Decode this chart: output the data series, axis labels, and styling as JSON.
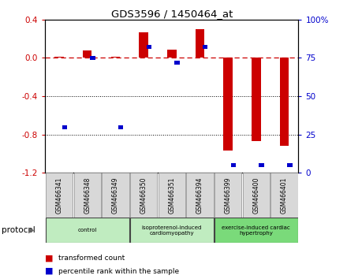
{
  "title": "GDS3596 / 1450464_at",
  "samples": [
    "GSM466341",
    "GSM466348",
    "GSM466349",
    "GSM466350",
    "GSM466351",
    "GSM466394",
    "GSM466399",
    "GSM466400",
    "GSM466401"
  ],
  "transformed_count": [
    0.01,
    0.08,
    0.01,
    0.27,
    0.09,
    0.3,
    -0.97,
    -0.87,
    -0.92
  ],
  "percentile_rank": [
    30,
    75,
    30,
    82,
    72,
    82,
    5,
    5,
    5
  ],
  "red_color": "#cc0000",
  "blue_color": "#0000cc",
  "ylim_left": [
    -1.2,
    0.4
  ],
  "ylim_right": [
    0,
    100
  ],
  "right_ticks": [
    0,
    25,
    50,
    75,
    100
  ],
  "right_tick_labels": [
    "0",
    "25",
    "50",
    "75",
    "100%"
  ],
  "left_ticks": [
    -1.2,
    -0.8,
    -0.4,
    0.0,
    0.4
  ],
  "dotted_line_y": [
    -0.4,
    -0.8
  ],
  "dashed_line_y": 0.0,
  "legend_items": [
    {
      "label": "transformed count",
      "color": "#cc0000"
    },
    {
      "label": "percentile rank within the sample",
      "color": "#0000cc"
    }
  ],
  "protocol_label": "protocol",
  "groups": [
    {
      "label": "control",
      "start": 0,
      "end": 3,
      "color": "#c0ecc0"
    },
    {
      "label": "isoproterenol-induced\ncardiomyopathy",
      "start": 3,
      "end": 6,
      "color": "#c0ecc0"
    },
    {
      "label": "exercise-induced cardiac\nhypertrophy",
      "start": 6,
      "end": 9,
      "color": "#7ada7a"
    }
  ],
  "sample_box_color": "#d8d8d8",
  "background_color": "#ffffff"
}
